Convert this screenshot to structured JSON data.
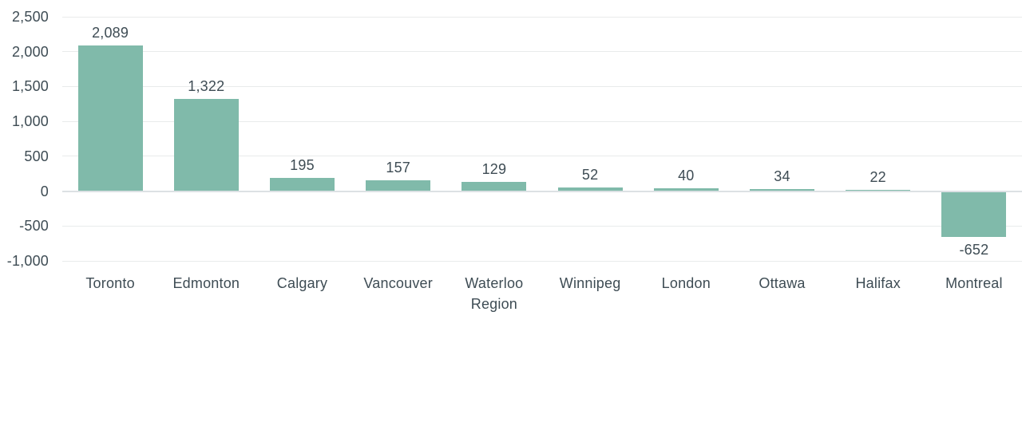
{
  "chart_data": {
    "type": "bar",
    "categories": [
      "Toronto",
      "Edmonton",
      "Calgary",
      "Vancouver",
      "Waterloo Region",
      "Winnipeg",
      "London",
      "Ottawa",
      "Halifax",
      "Montreal"
    ],
    "values": [
      2089,
      1322,
      195,
      157,
      129,
      52,
      40,
      34,
      22,
      -652
    ],
    "value_labels": [
      "2,089",
      "1,322",
      "195",
      "157",
      "129",
      "52",
      "40",
      "34",
      "22",
      "-652"
    ],
    "title": "",
    "xlabel": "",
    "ylabel": "",
    "ylim": [
      -1000,
      2500
    ],
    "ytick_step": 500,
    "ytick_labels": [
      "2,500",
      "2,000",
      "1,500",
      "1,000",
      "500",
      "0",
      "-500",
      "-1,000"
    ],
    "grid": true,
    "legend_position": "none",
    "colors": {
      "bar": "#80BAAA",
      "text": "#3E4C54",
      "gridline": "#E9EBEB",
      "zero_line": "#DCE1E4",
      "background": "#FFFFFF"
    }
  }
}
